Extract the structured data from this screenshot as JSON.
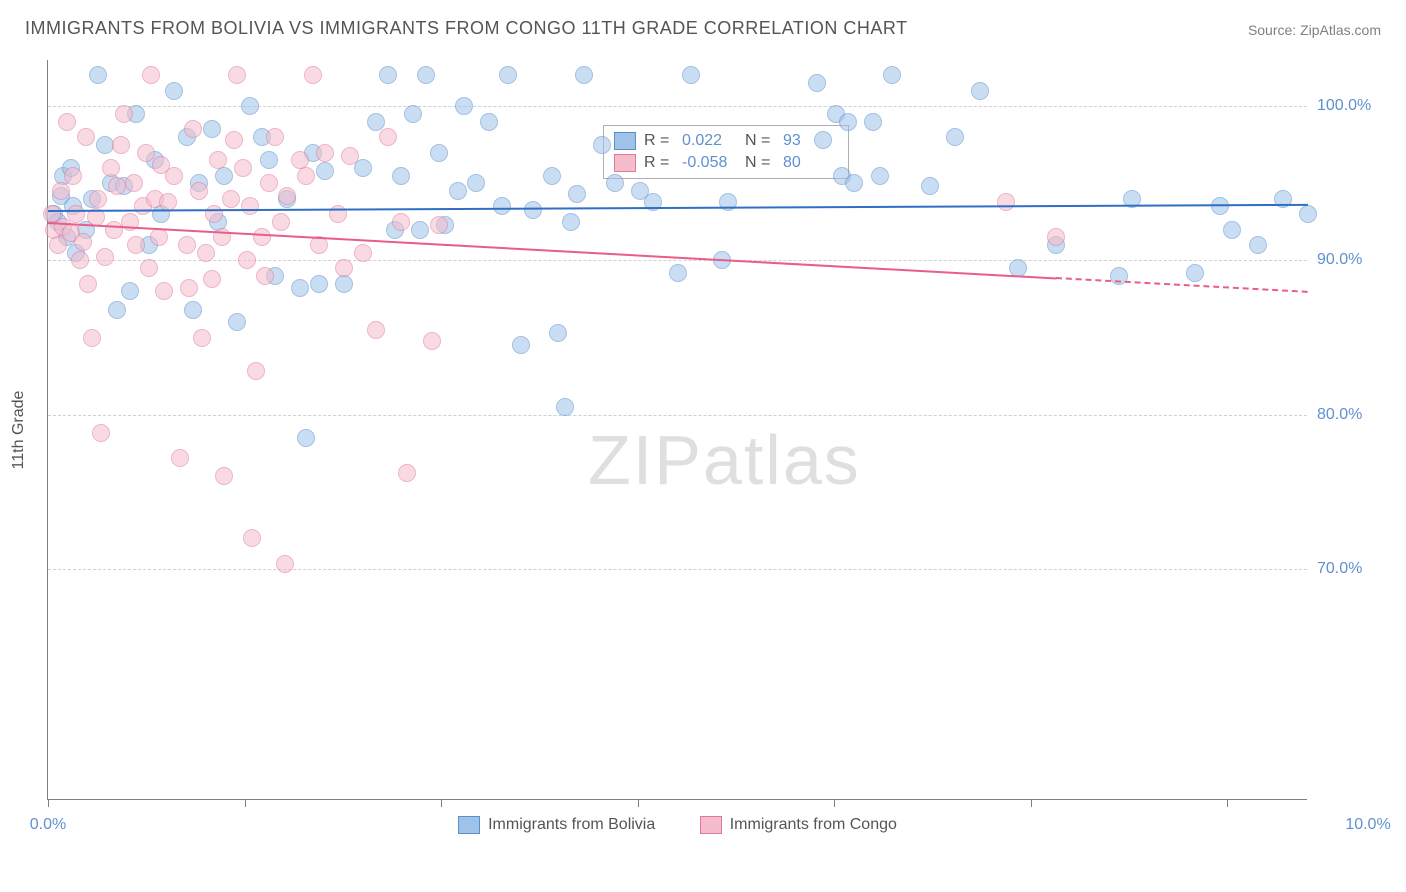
{
  "title": "IMMIGRANTS FROM BOLIVIA VS IMMIGRANTS FROM CONGO 11TH GRADE CORRELATION CHART",
  "source": "Source: ZipAtlas.com",
  "y_axis_title": "11th Grade",
  "watermark_a": "ZIP",
  "watermark_b": "atlas",
  "chart": {
    "type": "scatter",
    "xlim": [
      0,
      10
    ],
    "ylim": [
      55,
      103
    ],
    "xtick_positions": [
      0,
      1.56,
      3.12,
      4.68,
      6.24,
      7.8,
      9.36
    ],
    "xtick_labels_shown": {
      "0": "0.0%",
      "10": "10.0%"
    },
    "ytick_positions": [
      70,
      80,
      90,
      100
    ],
    "ytick_labels": {
      "70": "70.0%",
      "80": "80.0%",
      "90": "90.0%",
      "100": "100.0%"
    },
    "background_color": "#ffffff",
    "grid_color": "#d0d0d0",
    "axis_color": "#808080",
    "point_radius": 9,
    "point_opacity": 0.55,
    "series": [
      {
        "name": "Immigrants from Bolivia",
        "color_fill": "#9ec2ea",
        "color_stroke": "#5b8fc9",
        "line_color": "#2f6fc5",
        "R": "0.022",
        "N": "93",
        "trend": {
          "x1": 0,
          "y1": 93.3,
          "x2": 10,
          "y2": 93.7,
          "solid_until_x": 10
        },
        "points": [
          [
            0.05,
            93.0
          ],
          [
            0.08,
            92.5
          ],
          [
            0.1,
            94.2
          ],
          [
            0.12,
            95.5
          ],
          [
            0.15,
            91.5
          ],
          [
            0.18,
            96.0
          ],
          [
            0.2,
            93.5
          ],
          [
            0.22,
            90.5
          ],
          [
            0.3,
            92.0
          ],
          [
            0.35,
            94.0
          ],
          [
            0.4,
            102.0
          ],
          [
            0.45,
            97.5
          ],
          [
            0.5,
            95.0
          ],
          [
            0.55,
            86.8
          ],
          [
            0.6,
            94.8
          ],
          [
            0.65,
            88.0
          ],
          [
            0.7,
            99.5
          ],
          [
            0.8,
            91.0
          ],
          [
            0.85,
            96.5
          ],
          [
            0.9,
            93.0
          ],
          [
            1.0,
            101.0
          ],
          [
            1.1,
            98.0
          ],
          [
            1.15,
            86.8
          ],
          [
            1.2,
            95.0
          ],
          [
            1.3,
            98.5
          ],
          [
            1.35,
            92.5
          ],
          [
            1.4,
            95.5
          ],
          [
            1.5,
            86.0
          ],
          [
            1.6,
            100.0
          ],
          [
            1.7,
            98.0
          ],
          [
            1.75,
            96.5
          ],
          [
            1.8,
            89.0
          ],
          [
            1.9,
            94.0
          ],
          [
            2.0,
            88.2
          ],
          [
            2.05,
            78.5
          ],
          [
            2.1,
            97.0
          ],
          [
            2.15,
            88.5
          ],
          [
            2.2,
            95.8
          ],
          [
            2.35,
            88.5
          ],
          [
            2.5,
            96.0
          ],
          [
            2.6,
            99.0
          ],
          [
            2.7,
            102.0
          ],
          [
            2.75,
            92.0
          ],
          [
            2.8,
            95.5
          ],
          [
            2.9,
            99.5
          ],
          [
            2.95,
            92.0
          ],
          [
            3.0,
            102.0
          ],
          [
            3.1,
            97.0
          ],
          [
            3.15,
            92.3
          ],
          [
            3.25,
            94.5
          ],
          [
            3.3,
            100.0
          ],
          [
            3.4,
            95.0
          ],
          [
            3.5,
            99.0
          ],
          [
            3.6,
            93.5
          ],
          [
            3.65,
            102.0
          ],
          [
            3.75,
            84.5
          ],
          [
            3.85,
            93.3
          ],
          [
            4.0,
            95.5
          ],
          [
            4.05,
            85.3
          ],
          [
            4.1,
            80.5
          ],
          [
            4.15,
            92.5
          ],
          [
            4.2,
            94.3
          ],
          [
            4.25,
            102.0
          ],
          [
            4.4,
            97.5
          ],
          [
            4.5,
            95.0
          ],
          [
            4.7,
            94.5
          ],
          [
            4.8,
            93.8
          ],
          [
            5.0,
            89.2
          ],
          [
            5.1,
            102.0
          ],
          [
            5.35,
            90.0
          ],
          [
            5.4,
            93.8
          ],
          [
            6.1,
            101.5
          ],
          [
            6.15,
            97.8
          ],
          [
            6.25,
            99.5
          ],
          [
            6.3,
            95.5
          ],
          [
            6.35,
            99.0
          ],
          [
            6.4,
            95.0
          ],
          [
            6.55,
            99.0
          ],
          [
            6.6,
            95.5
          ],
          [
            6.7,
            102.0
          ],
          [
            7.0,
            94.8
          ],
          [
            7.2,
            98.0
          ],
          [
            7.4,
            101.0
          ],
          [
            7.7,
            89.5
          ],
          [
            8.0,
            91.0
          ],
          [
            8.5,
            89.0
          ],
          [
            8.6,
            94.0
          ],
          [
            9.1,
            89.2
          ],
          [
            9.3,
            93.5
          ],
          [
            9.4,
            92.0
          ],
          [
            9.6,
            91.0
          ],
          [
            9.8,
            94.0
          ],
          [
            10.0,
            93.0
          ]
        ]
      },
      {
        "name": "Immigrants from Congo",
        "color_fill": "#f5bccc",
        "color_stroke": "#e07a9a",
        "line_color": "#e85d8a",
        "R": "-0.058",
        "N": "80",
        "trend": {
          "x1": 0,
          "y1": 92.5,
          "x2": 10,
          "y2": 88.0,
          "solid_until_x": 8.0
        },
        "points": [
          [
            0.03,
            93.0
          ],
          [
            0.05,
            92.0
          ],
          [
            0.08,
            91.0
          ],
          [
            0.1,
            94.5
          ],
          [
            0.12,
            92.2
          ],
          [
            0.15,
            99.0
          ],
          [
            0.18,
            91.8
          ],
          [
            0.2,
            95.5
          ],
          [
            0.22,
            93.0
          ],
          [
            0.25,
            90.0
          ],
          [
            0.28,
            91.2
          ],
          [
            0.3,
            98.0
          ],
          [
            0.32,
            88.5
          ],
          [
            0.35,
            85.0
          ],
          [
            0.38,
            92.8
          ],
          [
            0.4,
            94.0
          ],
          [
            0.42,
            78.8
          ],
          [
            0.45,
            90.2
          ],
          [
            0.5,
            96.0
          ],
          [
            0.52,
            92.0
          ],
          [
            0.55,
            94.8
          ],
          [
            0.58,
            97.5
          ],
          [
            0.6,
            99.5
          ],
          [
            0.65,
            92.5
          ],
          [
            0.68,
            95.0
          ],
          [
            0.7,
            91.0
          ],
          [
            0.75,
            93.5
          ],
          [
            0.78,
            97.0
          ],
          [
            0.8,
            89.5
          ],
          [
            0.82,
            102.0
          ],
          [
            0.85,
            94.0
          ],
          [
            0.88,
            91.5
          ],
          [
            0.9,
            96.2
          ],
          [
            0.92,
            88.0
          ],
          [
            0.95,
            93.8
          ],
          [
            1.0,
            95.5
          ],
          [
            1.05,
            77.2
          ],
          [
            1.1,
            91.0
          ],
          [
            1.12,
            88.2
          ],
          [
            1.15,
            98.5
          ],
          [
            1.2,
            94.5
          ],
          [
            1.22,
            85.0
          ],
          [
            1.25,
            90.5
          ],
          [
            1.3,
            88.8
          ],
          [
            1.32,
            93.0
          ],
          [
            1.35,
            96.5
          ],
          [
            1.38,
            91.5
          ],
          [
            1.4,
            76.0
          ],
          [
            1.45,
            94.0
          ],
          [
            1.48,
            97.8
          ],
          [
            1.5,
            102.0
          ],
          [
            1.55,
            96.0
          ],
          [
            1.58,
            90.0
          ],
          [
            1.6,
            93.5
          ],
          [
            1.62,
            72.0
          ],
          [
            1.65,
            82.8
          ],
          [
            1.7,
            91.5
          ],
          [
            1.72,
            89.0
          ],
          [
            1.75,
            95.0
          ],
          [
            1.8,
            98.0
          ],
          [
            1.85,
            92.5
          ],
          [
            1.88,
            70.3
          ],
          [
            1.9,
            94.2
          ],
          [
            2.0,
            96.5
          ],
          [
            2.05,
            95.5
          ],
          [
            2.1,
            102.0
          ],
          [
            2.15,
            91.0
          ],
          [
            2.2,
            97.0
          ],
          [
            2.3,
            93.0
          ],
          [
            2.35,
            89.5
          ],
          [
            2.4,
            96.8
          ],
          [
            2.5,
            90.5
          ],
          [
            2.6,
            85.5
          ],
          [
            2.7,
            98.0
          ],
          [
            2.8,
            92.5
          ],
          [
            2.85,
            76.2
          ],
          [
            3.05,
            84.8
          ],
          [
            3.1,
            92.3
          ],
          [
            7.6,
            93.8
          ],
          [
            8.0,
            91.5
          ]
        ]
      }
    ]
  },
  "legend_top": {
    "r_label": "R =",
    "n_label": "N ="
  },
  "legend_bottom": {
    "series1": "Immigrants from Bolivia",
    "series2": "Immigrants from Congo"
  }
}
